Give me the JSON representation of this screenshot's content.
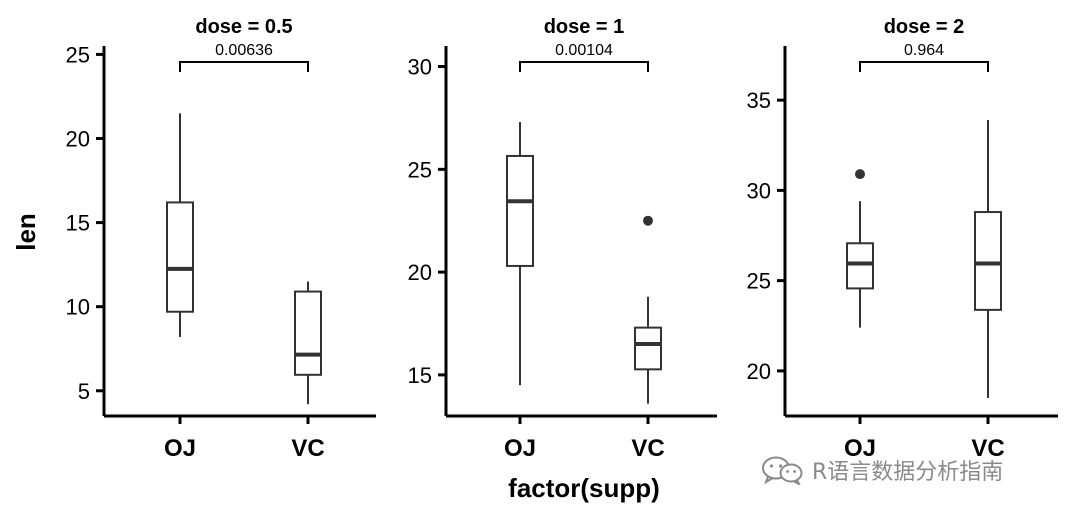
{
  "chart_data": {
    "type": "boxplot",
    "layout": "faceted",
    "xlabel": "factor(supp)",
    "ylabel": "len",
    "colors": {
      "box_stroke": "#333333",
      "axis": "#000000",
      "watermark": "#8a8a8a"
    },
    "panels": [
      {
        "title": "dose = 0.5",
        "categories": [
          "OJ",
          "VC"
        ],
        "ylim": [
          3.5,
          25.5
        ],
        "yticks": [
          5,
          10,
          15,
          20,
          25
        ],
        "comparison": {
          "label": "0.00636",
          "from": "OJ",
          "to": "VC"
        },
        "boxes": [
          {
            "category": "OJ",
            "min": 8.2,
            "q1": 9.7,
            "median": 12.25,
            "q3": 16.2,
            "max": 21.5,
            "outliers": []
          },
          {
            "category": "VC",
            "min": 4.2,
            "q1": 5.95,
            "median": 7.15,
            "q3": 10.9,
            "max": 11.5,
            "outliers": []
          }
        ]
      },
      {
        "title": "dose = 1",
        "categories": [
          "OJ",
          "VC"
        ],
        "ylim": [
          13.0,
          31.0
        ],
        "yticks": [
          15,
          20,
          25,
          30
        ],
        "comparison": {
          "label": "0.00104",
          "from": "OJ",
          "to": "VC"
        },
        "boxes": [
          {
            "category": "OJ",
            "min": 14.5,
            "q1": 20.3,
            "median": 23.45,
            "q3": 25.65,
            "max": 27.3,
            "outliers": []
          },
          {
            "category": "VC",
            "min": 13.6,
            "q1": 15.27,
            "median": 16.5,
            "q3": 17.3,
            "max": 18.8,
            "outliers": [
              22.5
            ]
          }
        ]
      },
      {
        "title": "dose = 2",
        "categories": [
          "OJ",
          "VC"
        ],
        "ylim": [
          17.5,
          38.0
        ],
        "yticks": [
          20,
          25,
          30,
          35
        ],
        "comparison": {
          "label": "0.964",
          "from": "OJ",
          "to": "VC"
        },
        "boxes": [
          {
            "category": "OJ",
            "min": 22.4,
            "q1": 24.57,
            "median": 25.95,
            "q3": 27.07,
            "max": 29.4,
            "outliers": [
              30.9
            ]
          },
          {
            "category": "VC",
            "min": 18.5,
            "q1": 23.38,
            "median": 25.95,
            "q3": 28.8,
            "max": 33.9,
            "outliers": []
          }
        ]
      }
    ]
  },
  "watermark": {
    "icon": "wechat-icon",
    "text": "R语言数据分析指南"
  }
}
